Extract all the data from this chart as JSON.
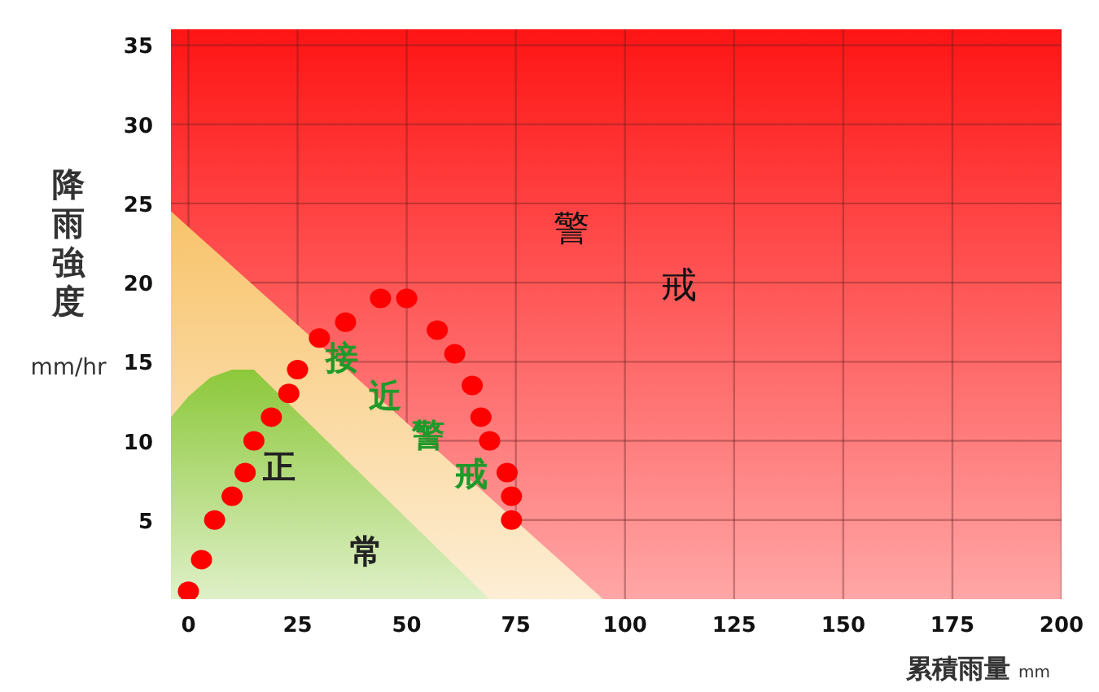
{
  "chart_data": {
    "type": "scatter",
    "xlabel": "累積雨量 mm",
    "ylabel": "降雨強度 mm/hr",
    "xlim": [
      -4,
      200
    ],
    "ylim": [
      0,
      36
    ],
    "xticks": [
      0,
      25,
      50,
      75,
      100,
      125,
      150,
      175,
      200
    ],
    "yticks": [
      5,
      10,
      15,
      20,
      25,
      30,
      35
    ],
    "grid": true,
    "bands": [
      {
        "axis": "y",
        "from": 0,
        "to": 36,
        "label": "警戒",
        "color": "#ff1414"
      }
    ],
    "series": [
      {
        "name": "接近警戒",
        "type": "area",
        "color": "#f8c36a",
        "x": [
          -4,
          95
        ],
        "values": [
          24.5,
          0
        ]
      },
      {
        "name": "正常",
        "type": "area",
        "color": "#8cc83a",
        "x": [
          -4,
          0,
          5,
          10,
          15,
          69
        ],
        "values": [
          11.5,
          12.8,
          14,
          14.5,
          14.5,
          0
        ]
      },
      {
        "marker": "circle",
        "color": "#ff0000",
        "x": [
          0,
          3,
          6,
          10,
          13,
          15,
          19,
          23,
          25,
          30,
          36,
          44,
          50,
          57,
          61,
          65,
          67,
          69,
          73,
          74,
          74
        ],
        "values": [
          0.5,
          2.5,
          5,
          6.5,
          8,
          10,
          11.5,
          13,
          14.5,
          16.5,
          17.5,
          19,
          19,
          17,
          15.5,
          13.5,
          11.5,
          10,
          8,
          6.5,
          5
        ]
      }
    ]
  }
}
